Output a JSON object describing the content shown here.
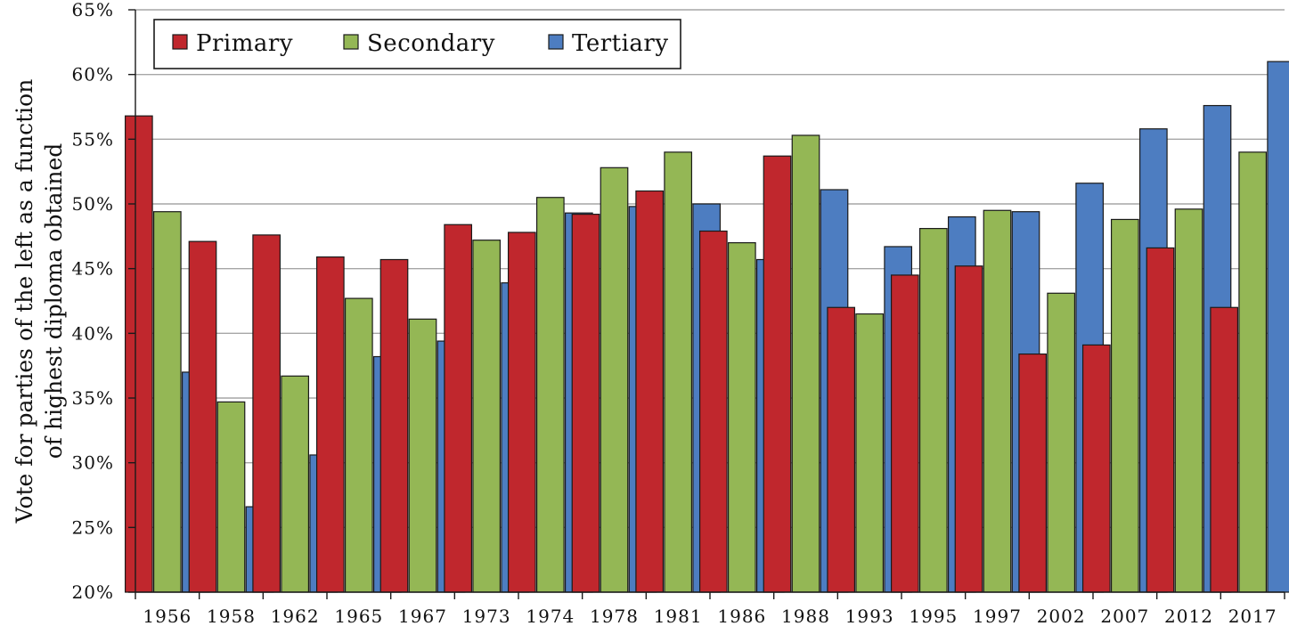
{
  "chart_data": {
    "type": "bar",
    "ylabel": "Vote for parties of the left as a function of highest diploma obtained",
    "ylabel_lines": [
      "Vote for parties of the left as a function",
      "of highest diploma obtained"
    ],
    "ylim": [
      20,
      65
    ],
    "y_ticks": [
      20,
      25,
      30,
      35,
      40,
      45,
      50,
      55,
      60,
      65
    ],
    "y_tick_suffix": "%",
    "grid": true,
    "legend_position": "top-left",
    "categories": [
      "1956",
      "1958",
      "1962",
      "1965",
      "1967",
      "1973",
      "1974",
      "1978",
      "1981",
      "1986",
      "1988",
      "1993",
      "1995",
      "1997",
      "2002",
      "2007",
      "2012",
      "2017"
    ],
    "series": [
      {
        "name": "Primary",
        "color": "#c0272d",
        "values": [
          56.8,
          47.1,
          47.6,
          45.9,
          45.7,
          48.4,
          47.8,
          49.2,
          51.0,
          47.9,
          53.7,
          42.0,
          44.5,
          45.2,
          38.4,
          39.1,
          46.6,
          42.0
        ]
      },
      {
        "name": "Secondary",
        "color": "#94b755",
        "values": [
          49.4,
          34.7,
          36.7,
          42.7,
          41.1,
          47.2,
          50.5,
          52.8,
          54.0,
          47.0,
          55.3,
          41.5,
          48.1,
          49.5,
          43.1,
          48.8,
          49.6,
          54.0
        ]
      },
      {
        "name": "Tertiary",
        "color": "#4d7dc1",
        "values": [
          37.0,
          26.6,
          30.6,
          38.2,
          39.4,
          43.9,
          49.3,
          49.8,
          50.0,
          45.7,
          51.1,
          46.7,
          49.0,
          49.4,
          51.6,
          55.8,
          57.6,
          61.0
        ]
      }
    ]
  }
}
